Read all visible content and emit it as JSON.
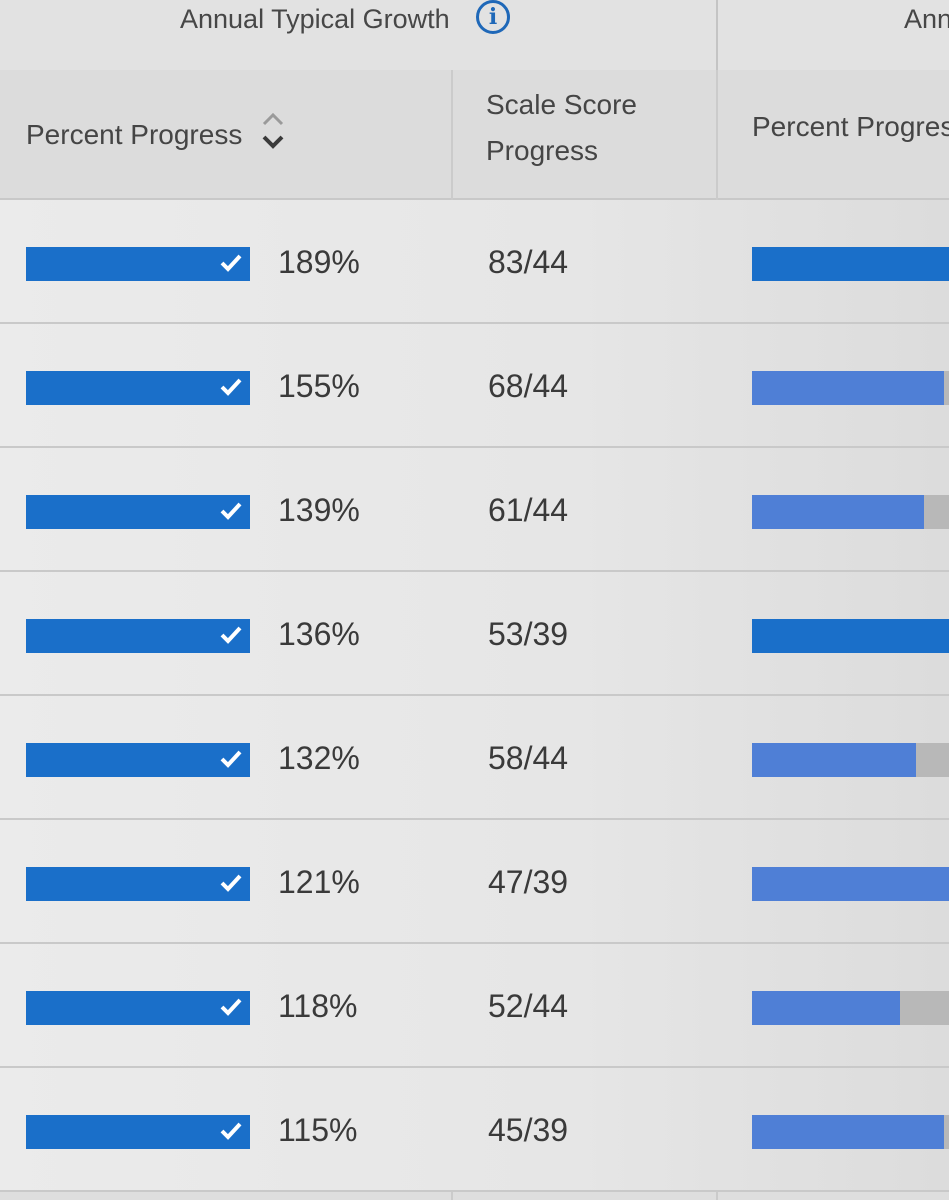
{
  "header": {
    "group_title": "Annual Typical Growth",
    "group_title_next": "Ann",
    "info_icon": "info-icon"
  },
  "columns": {
    "percent_progress": "Percent Progress",
    "scale_score_line1": "Scale Score",
    "scale_score_line2": "Progress",
    "percent_progress_next": "Percent Progres"
  },
  "icons": {
    "sort": "sort-chevrons-icon",
    "check": "check-icon"
  },
  "colors": {
    "bar_primary": "#1a6fc9",
    "bar_secondary": "#4f7fd6",
    "bar_track": "#b8b8b8",
    "info": "#1f68b8"
  },
  "rows": [
    {
      "percent": "189%",
      "score": "83/44",
      "next_fill": 1.0,
      "next_color": "#1a6fc9"
    },
    {
      "percent": "155%",
      "score": "68/44",
      "next_fill": 0.96,
      "next_color": "#4f7fd6"
    },
    {
      "percent": "139%",
      "score": "61/44",
      "next_fill": 0.86,
      "next_color": "#4f7fd6"
    },
    {
      "percent": "136%",
      "score": "53/39",
      "next_fill": 1.0,
      "next_color": "#1a6fc9"
    },
    {
      "percent": "132%",
      "score": "58/44",
      "next_fill": 0.82,
      "next_color": "#4f7fd6"
    },
    {
      "percent": "121%",
      "score": "47/39",
      "next_fill": 1.0,
      "next_color": "#4f7fd6"
    },
    {
      "percent": "118%",
      "score": "52/44",
      "next_fill": 0.74,
      "next_color": "#4f7fd6"
    },
    {
      "percent": "115%",
      "score": "45/39",
      "next_fill": 0.96,
      "next_color": "#4f7fd6"
    }
  ]
}
